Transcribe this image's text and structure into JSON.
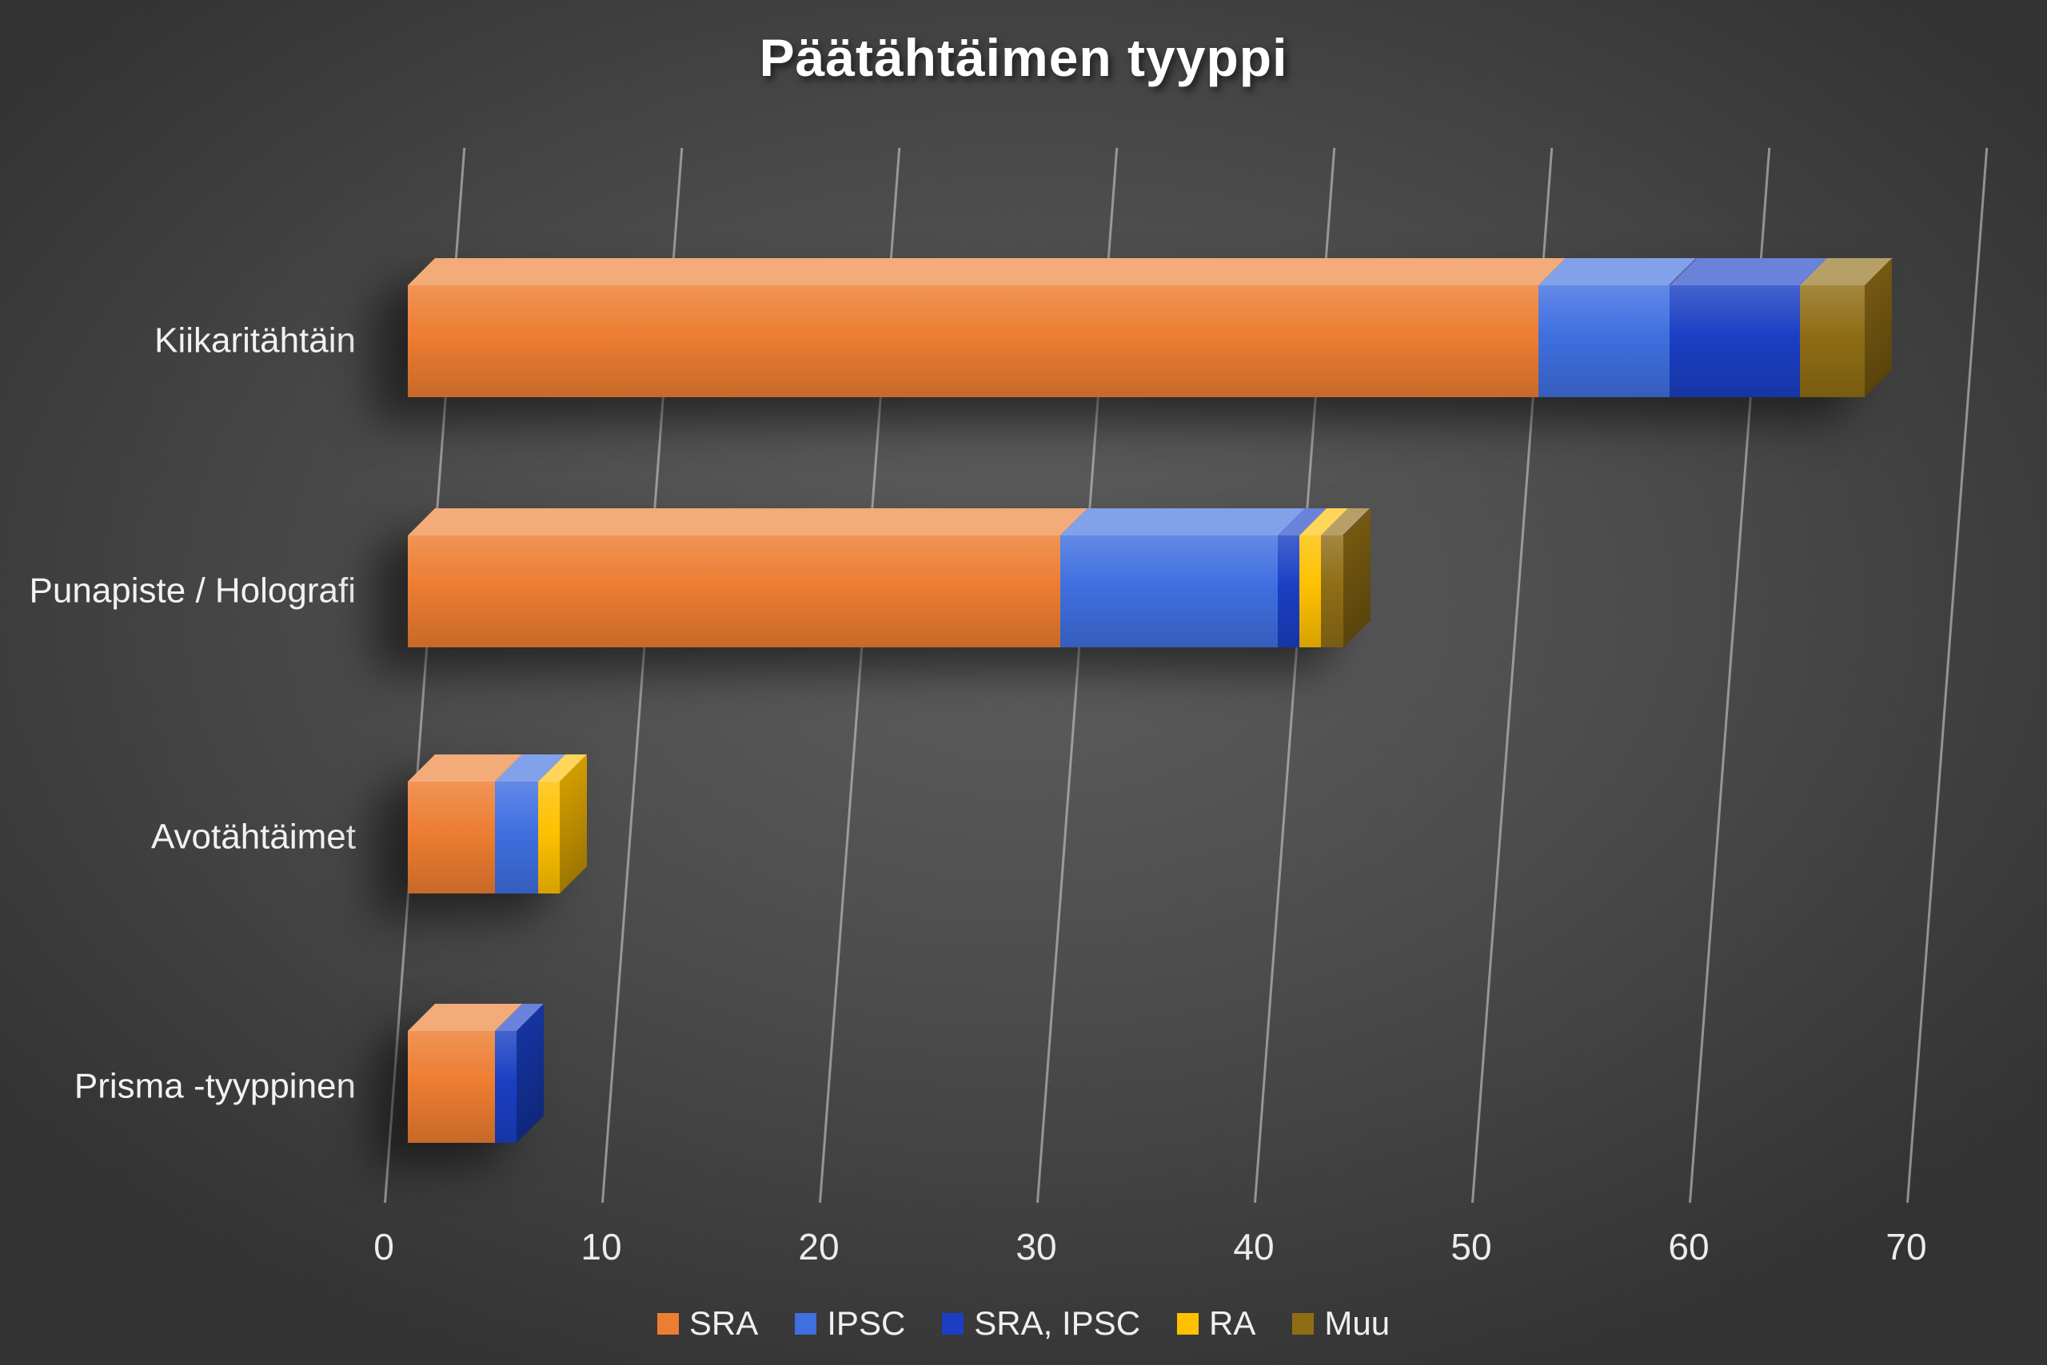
{
  "chart_data": {
    "type": "bar",
    "orientation": "horizontal",
    "stacked": true,
    "style": "3d",
    "title": "Päätähtäimen tyyppi",
    "categories": [
      "Kiikaritähtäin",
      "Punapiste / Holografi",
      "Avotähtäimet",
      "Prisma -tyyppinen"
    ],
    "series": [
      {
        "name": "SRA",
        "color": "#ED7D31",
        "values": [
          52,
          30,
          4,
          4
        ]
      },
      {
        "name": "IPSC",
        "color": "#3F6FE0",
        "values": [
          6,
          10,
          2,
          0
        ]
      },
      {
        "name": "SRA, IPSC",
        "color": "#1A3FC4",
        "values": [
          6,
          1,
          0,
          1
        ]
      },
      {
        "name": "RA",
        "color": "#FFC000",
        "values": [
          0,
          1,
          1,
          0
        ]
      },
      {
        "name": "Muu",
        "color": "#8F6D15",
        "values": [
          3,
          1,
          0,
          0
        ]
      }
    ],
    "xlabel": "",
    "ylabel": "",
    "xlim": [
      0,
      70
    ],
    "xticks": [
      0,
      10,
      20,
      30,
      40,
      50,
      60,
      70
    ],
    "grid": true,
    "legend_position": "bottom",
    "background": "dark-gray-radial",
    "text_color": "#f0f0f0"
  }
}
